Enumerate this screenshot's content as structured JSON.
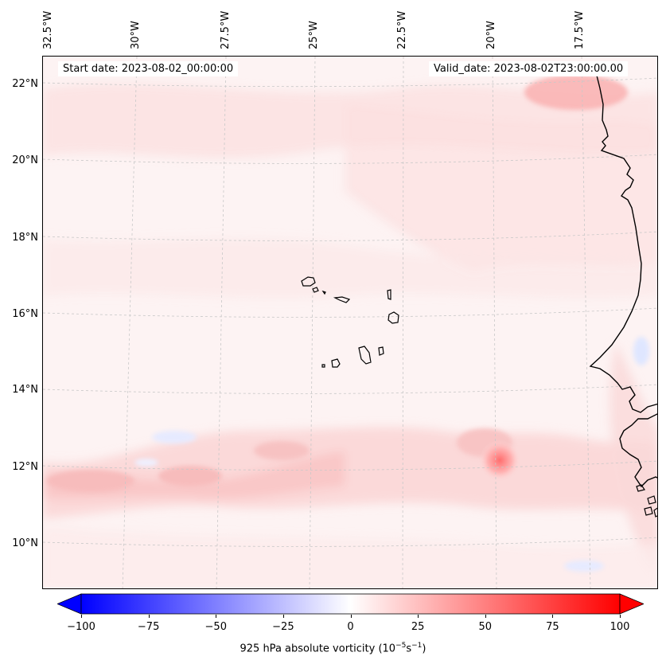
{
  "map": {
    "start_date": "Start date: 2023-08-02_00:00:00",
    "valid_date": "Valid_date: 2023-08-02T23:00:00.00",
    "lon_labels": [
      "32.5°W",
      "30°W",
      "27.5°W",
      "25°W",
      "22.5°W",
      "20°W",
      "17.5°W"
    ],
    "lat_labels": [
      "22°N",
      "20°N",
      "18°N",
      "16°N",
      "14°N",
      "12°N",
      "10°N"
    ],
    "coast_color": "#000000",
    "gridline_color": "#c8c8c8"
  },
  "colorbar": {
    "ticks": [
      "−100",
      "−75",
      "−50",
      "−25",
      "0",
      "25",
      "50",
      "75",
      "100"
    ],
    "tick_values": [
      -100,
      -75,
      -50,
      -25,
      0,
      25,
      50,
      75,
      100
    ],
    "min": -100,
    "max": 100,
    "low_color": "#0000ff",
    "mid_color": "#ffffff",
    "high_color": "#ff0000",
    "label_main": "925 hPa absolute vorticity (10",
    "label_exp1": "−5",
    "label_mid": "s",
    "label_exp2": "−1",
    "label_end": ")"
  }
}
